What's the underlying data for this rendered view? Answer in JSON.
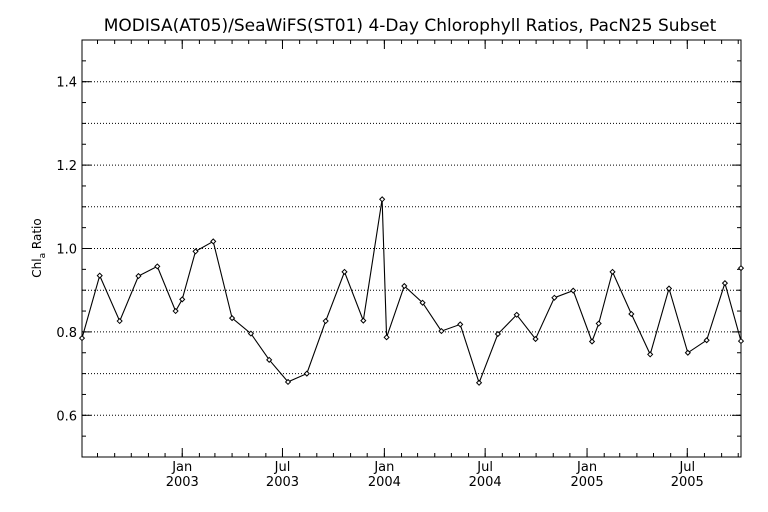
{
  "chart_data": {
    "type": "line",
    "title": "MODISA(AT05)/SeaWiFS(ST01) 4-Day Chlorophyll Ratios, PacN25 Subset",
    "ylabel": {
      "base": "Chl",
      "subscript": "a",
      "rest": " Ratio"
    },
    "xlabel": "",
    "ylim": [
      0.5,
      1.5
    ],
    "xlim": [
      "2002-07-04",
      "2005-10-06"
    ],
    "yticks": [
      {
        "value": 0.6,
        "label": "0.6"
      },
      {
        "value": 0.8,
        "label": "0.8"
      },
      {
        "value": 1.0,
        "label": "1.0"
      },
      {
        "value": 1.2,
        "label": "1.2"
      },
      {
        "value": 1.4,
        "label": "1.4"
      }
    ],
    "ygrid": [
      0.6,
      0.7,
      0.8,
      0.9,
      1.0,
      1.1,
      1.2,
      1.3,
      1.4
    ],
    "xticks": [
      {
        "date": "2003-01-01",
        "month": "Jan",
        "year": "2003"
      },
      {
        "date": "2003-07-01",
        "month": "Jul",
        "year": "2003"
      },
      {
        "date": "2004-01-01",
        "month": "Jan",
        "year": "2004"
      },
      {
        "date": "2004-07-01",
        "month": "Jul",
        "year": "2004"
      },
      {
        "date": "2005-01-01",
        "month": "Jan",
        "year": "2005"
      },
      {
        "date": "2005-07-01",
        "month": "Jul",
        "year": "2005"
      }
    ],
    "grid": "horizontal-dotted",
    "series": [
      {
        "color": "#000000",
        "marker": "diamond",
        "points": [
          {
            "x": "2002-07-04",
            "y": 0.785
          },
          {
            "x": "2002-08-05",
            "y": 0.935
          },
          {
            "x": "2002-09-10",
            "y": 0.826
          },
          {
            "x": "2002-10-14",
            "y": 0.934
          },
          {
            "x": "2002-11-17",
            "y": 0.957
          },
          {
            "x": "2002-12-20",
            "y": 0.85
          },
          {
            "x": "2003-01-01",
            "y": 0.878
          },
          {
            "x": "2003-01-25",
            "y": 0.993
          },
          {
            "x": "2003-02-26",
            "y": 1.017
          },
          {
            "x": "2003-04-01",
            "y": 0.833
          },
          {
            "x": "2003-05-05",
            "y": 0.796
          },
          {
            "x": "2003-06-07",
            "y": 0.733
          },
          {
            "x": "2003-07-11",
            "y": 0.68
          },
          {
            "x": "2003-08-14",
            "y": 0.7
          },
          {
            "x": "2003-09-17",
            "y": 0.826
          },
          {
            "x": "2003-10-21",
            "y": 0.944
          },
          {
            "x": "2003-11-24",
            "y": 0.827
          },
          {
            "x": "2003-12-28",
            "y": 1.118
          },
          {
            "x": "2004-01-05",
            "y": 0.787
          },
          {
            "x": "2004-02-06",
            "y": 0.91
          },
          {
            "x": "2004-03-10",
            "y": 0.87
          },
          {
            "x": "2004-04-13",
            "y": 0.802
          },
          {
            "x": "2004-05-17",
            "y": 0.818
          },
          {
            "x": "2004-06-20",
            "y": 0.678
          },
          {
            "x": "2004-07-24",
            "y": 0.795
          },
          {
            "x": "2004-08-27",
            "y": 0.841
          },
          {
            "x": "2004-09-30",
            "y": 0.783
          },
          {
            "x": "2004-11-03",
            "y": 0.882
          },
          {
            "x": "2004-12-07",
            "y": 0.899
          },
          {
            "x": "2005-01-10",
            "y": 0.777
          },
          {
            "x": "2005-01-22",
            "y": 0.82
          },
          {
            "x": "2005-02-16",
            "y": 0.944
          },
          {
            "x": "2005-03-22",
            "y": 0.843
          },
          {
            "x": "2005-04-25",
            "y": 0.746
          },
          {
            "x": "2005-05-29",
            "y": 0.904
          },
          {
            "x": "2005-07-02",
            "y": 0.75
          },
          {
            "x": "2005-08-05",
            "y": 0.78
          },
          {
            "x": "2005-09-07",
            "y": 0.917
          },
          {
            "x": "2005-10-11",
            "y": 0.778
          },
          {
            "x": "2005-11-14",
            "y": 0.953
          }
        ]
      }
    ]
  }
}
